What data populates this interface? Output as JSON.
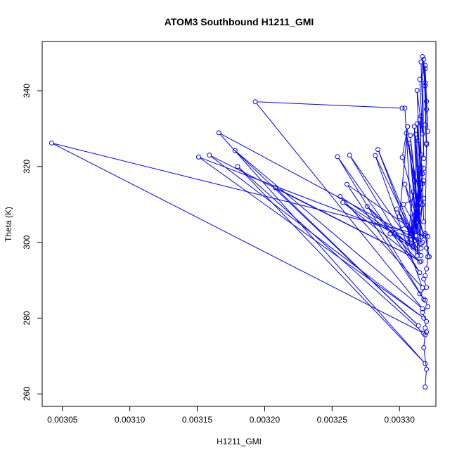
{
  "chart_data": {
    "type": "line",
    "title": "ATOM3 Southbound H1211_GMI",
    "xlabel": "H1211_GMI",
    "ylabel": "Theta (K)",
    "xlim": [
      0.003035,
      0.003327
    ],
    "ylim": [
      256.7,
      353.0
    ],
    "xticks": [
      {
        "value": 0.00305,
        "label": "0.00305"
      },
      {
        "value": 0.0031,
        "label": "0.00310"
      },
      {
        "value": 0.00315,
        "label": "0.00315"
      },
      {
        "value": 0.0032,
        "label": "0.00320"
      },
      {
        "value": 0.00325,
        "label": "0.00325"
      },
      {
        "value": 0.0033,
        "label": "0.00330"
      }
    ],
    "yticks": [
      {
        "value": 260,
        "label": "260"
      },
      {
        "value": 280,
        "label": "280"
      },
      {
        "value": 300,
        "label": "300"
      },
      {
        "value": 320,
        "label": "320"
      },
      {
        "value": 340,
        "label": "340"
      }
    ],
    "grid": false,
    "color": "#0000ff",
    "marker": "open-circle",
    "series": [
      {
        "x": [
          0.003319,
          0.00332,
          0.003318,
          0.003319,
          0.00332,
          0.003319,
          0.00332,
          0.003317,
          0.003321,
          0.003319,
          0.003315,
          0.00332,
          0.003318,
          0.003319,
          0.00332,
          0.003321,
          0.00332,
          0.003321,
          0.003042,
          0.003318,
          0.00318,
          0.003319,
          0.003166,
          0.003317,
          0.003151,
          0.003318,
          0.003159,
          0.003316,
          0.003208,
          0.003314,
          0.003178,
          0.003317,
          0.003193,
          0.003302,
          0.003304,
          0.00331,
          0.003293,
          0.003305,
          0.003261,
          0.003318,
          0.003254,
          0.003315,
          0.003263,
          0.003313,
          0.003284,
          0.003312,
          0.003282,
          0.003317,
          0.003256,
          0.00331,
          0.003258,
          0.003315,
          0.003276,
          0.003316,
          0.003298,
          0.003316,
          0.0033,
          0.003306,
          0.003302,
          0.003318,
          0.003304,
          0.003313,
          0.003307,
          0.003314,
          0.003308,
          0.003316,
          0.003303,
          0.003315,
          0.003305,
          0.003311,
          0.003306,
          0.003318,
          0.003309,
          0.003312,
          0.00331,
          0.003313,
          0.003311,
          0.003316,
          0.003312,
          0.003315,
          0.003313,
          0.003317,
          0.003314,
          0.003316,
          0.003315,
          0.003318,
          0.003314,
          0.003316,
          0.003313,
          0.003317,
          0.003312,
          0.003318,
          0.003311,
          0.003316,
          0.00331,
          0.003317,
          0.003309,
          0.003318,
          0.003308,
          0.003316,
          0.003313,
          0.003317,
          0.003315,
          0.003319,
          0.003316,
          0.003318,
          0.003317,
          0.003319,
          0.003318,
          0.00332,
          0.003319,
          0.003321,
          0.00332,
          0.003319,
          0.00332,
          0.003319,
          0.00332,
          0.003319,
          0.003322,
          0.003319
        ],
        "y": [
          261.8,
          266.5,
          272.2,
          275.6,
          276.3,
          277.4,
          279.1,
          281.5,
          283.0,
          284.7,
          286.4,
          288.1,
          290.3,
          291.2,
          293.0,
          296.2,
          298.5,
          301.5,
          326.2,
          276.0,
          320.0,
          268.0,
          328.9,
          300.0,
          322.5,
          280.0,
          323.0,
          295.0,
          314.4,
          278.0,
          324.2,
          282.5,
          337.1,
          335.4,
          335.4,
          298.5,
          302.2,
          304.5,
          315.3,
          285.0,
          322.6,
          292.0,
          323.0,
          297.5,
          324.5,
          300.5,
          322.9,
          288.0,
          312.1,
          299.0,
          310.5,
          294.8,
          309.5,
          296.5,
          308.8,
          298.4,
          306.8,
          330.5,
          322.4,
          301.9,
          315.3,
          303.2,
          326.1,
          305.0,
          328.2,
          301.4,
          310.0,
          312.4,
          328.8,
          316.2,
          299.8,
          319.5,
          302.1,
          302.8,
          313.3,
          305.2,
          330.6,
          299.6,
          328.5,
          310.6,
          331.3,
          315.5,
          326.8,
          323.1,
          332.4,
          305.4,
          304.5,
          333.3,
          296.4,
          309.9,
          301.8,
          311.6,
          307.1,
          319.8,
          298.9,
          318.1,
          300.8,
          316.3,
          302.4,
          310.3,
          340.1,
          328.6,
          343.0,
          345.8,
          347.6,
          322.1,
          349.0,
          341.3,
          348.3,
          325.8,
          346.7,
          329.3,
          337.2,
          342.1,
          335.1,
          331.0,
          326.2,
          301.7,
          296.2,
          302.3
        ]
      }
    ]
  }
}
